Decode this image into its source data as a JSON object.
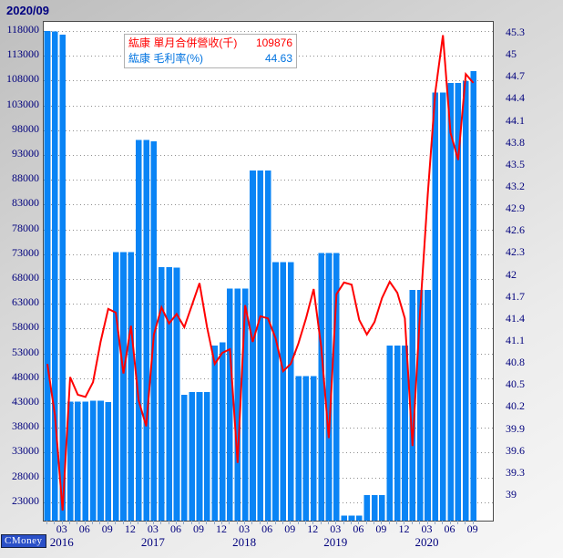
{
  "window": {
    "title_date": "2020/09"
  },
  "brand": {
    "logo_text": "CMoney"
  },
  "legend": {
    "revenue_label": "紘康 單月合併營收(千)",
    "revenue_value": "109876",
    "margin_label": "紘康 毛利率(%)",
    "margin_value": "44.63"
  },
  "colors": {
    "bar": "#0a84f5",
    "line": "#ff0000",
    "axis_text": "#00007d",
    "title_text": "#000080",
    "legend_revenue_text": "#ff0000",
    "legend_margin_text": "#0073e0",
    "grid": "#8f8f8f",
    "tick": "#8fa8c8",
    "plot_bg": "#ffffff"
  },
  "chart_data": {
    "type": "bar+line",
    "title": "2020/09",
    "series": [
      {
        "name": "紘康 單月合併營收(千)",
        "type": "bar",
        "axis": "left",
        "values": [
          118000,
          117900,
          117300,
          43300,
          43300,
          43300,
          43500,
          43500,
          43200,
          73400,
          73400,
          73400,
          96000,
          96000,
          95800,
          70400,
          70400,
          70300,
          44700,
          45200,
          45200,
          45200,
          54600,
          55200,
          66100,
          66100,
          66100,
          89900,
          89900,
          89900,
          71400,
          71400,
          71400,
          48400,
          48400,
          48400,
          73200,
          73200,
          73200,
          20300,
          20300,
          20300,
          24400,
          24400,
          24400,
          54600,
          54600,
          54600,
          65800,
          65800,
          65800,
          105600,
          105600,
          107500,
          107500,
          107900,
          109876
        ]
      },
      {
        "name": "紘康 毛利率(%)",
        "type": "line",
        "axis": "right",
        "values": [
          40.8,
          40.1,
          38.8,
          40.62,
          40.38,
          40.35,
          40.55,
          41.1,
          41.55,
          41.5,
          40.67,
          41.32,
          40.3,
          39.95,
          41.2,
          41.57,
          41.35,
          41.48,
          41.3,
          41.6,
          41.9,
          41.3,
          40.8,
          40.95,
          41.0,
          39.45,
          41.6,
          41.1,
          41.45,
          41.42,
          41.15,
          40.7,
          40.8,
          41.08,
          41.42,
          41.82,
          41.03,
          39.79,
          41.75,
          41.91,
          41.88,
          41.4,
          41.2,
          41.37,
          41.7,
          41.92,
          41.77,
          41.42,
          39.68,
          41.5,
          43.1,
          44.5,
          45.28,
          43.95,
          43.58,
          44.75,
          44.63
        ]
      }
    ],
    "x_start": "2016-01",
    "x_end": "2020-09",
    "x_ticks": [
      {
        "i": 3,
        "label": "03",
        "year": "2016"
      },
      {
        "i": 6,
        "label": "06"
      },
      {
        "i": 9,
        "label": "09"
      },
      {
        "i": 12,
        "label": "12"
      },
      {
        "i": 15,
        "label": "03",
        "year": "2017"
      },
      {
        "i": 18,
        "label": "06"
      },
      {
        "i": 21,
        "label": "09"
      },
      {
        "i": 24,
        "label": "12"
      },
      {
        "i": 27,
        "label": "03",
        "year": "2018"
      },
      {
        "i": 30,
        "label": "06"
      },
      {
        "i": 33,
        "label": "09"
      },
      {
        "i": 36,
        "label": "12"
      },
      {
        "i": 39,
        "label": "03",
        "year": "2019"
      },
      {
        "i": 42,
        "label": "06"
      },
      {
        "i": 45,
        "label": "09"
      },
      {
        "i": 48,
        "label": "12"
      },
      {
        "i": 51,
        "label": "03",
        "year": "2020"
      },
      {
        "i": 54,
        "label": "06"
      },
      {
        "i": 57,
        "label": "09"
      }
    ],
    "left_axis": {
      "max": 118000,
      "min": 23000,
      "step": 5000,
      "grid": true
    },
    "right_axis": {
      "max": 45.3,
      "min": 39,
      "step": 0.3,
      "grid": false
    },
    "legend_position": "top-center"
  }
}
